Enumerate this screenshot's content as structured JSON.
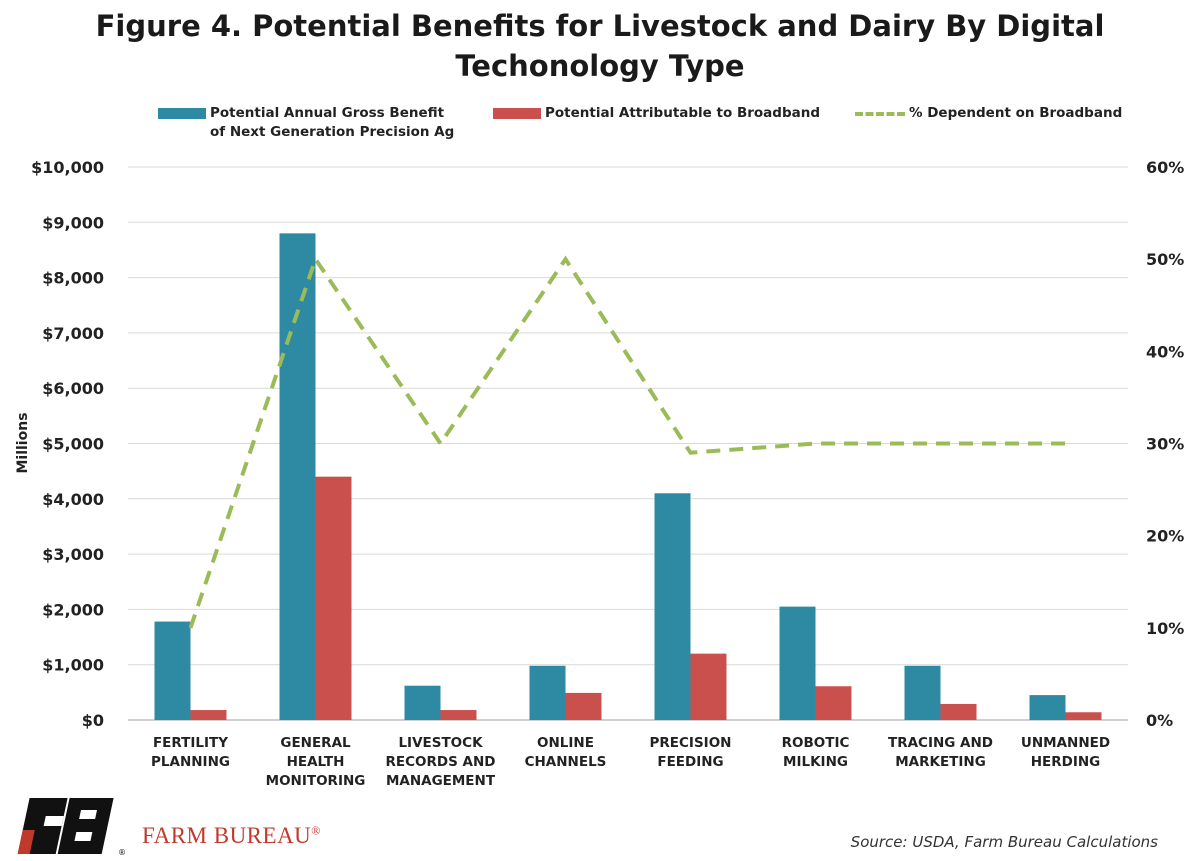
{
  "title_lines": [
    "Figure 4. Potential Benefits for Livestock and Dairy By Digital",
    "Techonology Type"
  ],
  "legend": {
    "gross": [
      "Potential Annual Gross Benefit",
      "of Next Generation Precision Ag"
    ],
    "broadband": "Potential Attributable to Broadband",
    "pct": "% Dependent on Broadband"
  },
  "colors": {
    "gross": "#2e8aa3",
    "broadband": "#c9504d",
    "pct": "#9bbb59",
    "grid": "#d9d9d9"
  },
  "chart_data": {
    "type": "bar",
    "categories": [
      [
        "FERTILITY",
        "PLANNING"
      ],
      [
        "GENERAL",
        "HEALTH",
        "MONITORING"
      ],
      [
        "LIVESTOCK",
        "RECORDS AND",
        "MANAGEMENT"
      ],
      [
        "ONLINE",
        "CHANNELS"
      ],
      [
        "PRECISION",
        "FEEDING"
      ],
      [
        "ROBOTIC",
        "MILKING"
      ],
      [
        "TRACING AND",
        "MARKETING"
      ],
      [
        "UNMANNED",
        "HERDING"
      ]
    ],
    "series": [
      {
        "name": "Potential Annual Gross Benefit of Next Generation Precision Ag",
        "type": "bar",
        "axis": "left",
        "values": [
          1780,
          8800,
          620,
          980,
          4100,
          2050,
          980,
          450
        ]
      },
      {
        "name": "Potential Attributable to Broadband",
        "type": "bar",
        "axis": "left",
        "values": [
          180,
          4400,
          180,
          490,
          1200,
          610,
          290,
          140
        ]
      },
      {
        "name": "% Dependent on Broadband",
        "type": "line",
        "style": "dashed",
        "axis": "right",
        "values": [
          10,
          50,
          30,
          50,
          29,
          30,
          30,
          30
        ]
      }
    ],
    "ylabel": "Millions",
    "ylim": [
      0,
      10000
    ],
    "yticks": [
      "$0",
      "$1,000",
      "$2,000",
      "$3,000",
      "$4,000",
      "$5,000",
      "$6,000",
      "$7,000",
      "$8,000",
      "$9,000",
      "$10,000"
    ],
    "y2lim": [
      0,
      60
    ],
    "y2ticks": [
      "0%",
      "10%",
      "20%",
      "30%",
      "40%",
      "50%",
      "60%"
    ],
    "grid": true,
    "legend_position": "top"
  },
  "footer": {
    "brand": "FARM BUREAU",
    "brand_mark": "®",
    "source": "Source: USDA, Farm Bureau Calculations"
  }
}
